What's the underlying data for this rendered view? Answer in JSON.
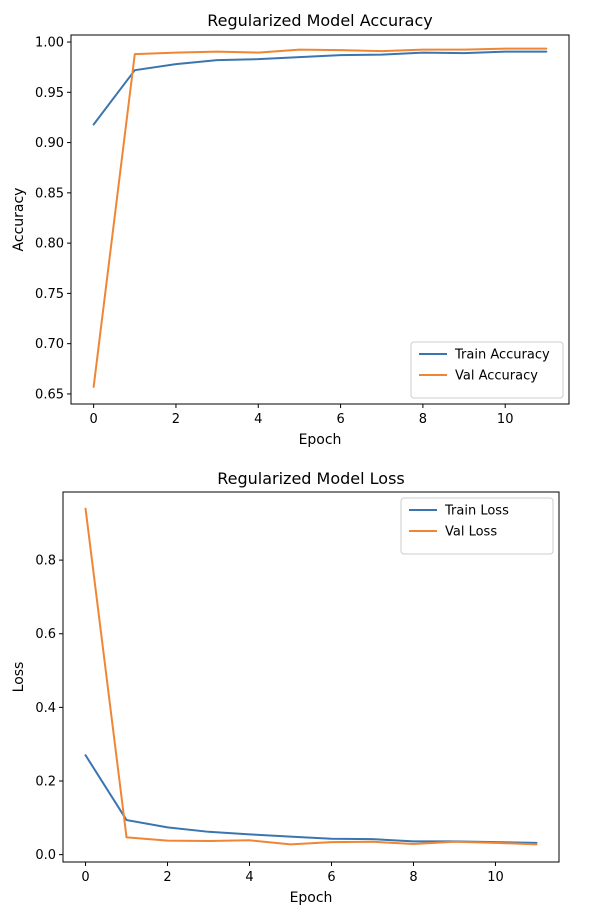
{
  "chart_data": [
    {
      "type": "line",
      "title": "Regularized Model Accuracy",
      "xlabel": "Epoch",
      "ylabel": "Accuracy",
      "xlim": [
        -0.55,
        11.55
      ],
      "ylim": [
        0.64,
        1.007
      ],
      "x_ticks": [
        0,
        2,
        4,
        6,
        8,
        10
      ],
      "y_ticks": [
        0.65,
        0.7,
        0.75,
        0.8,
        0.85,
        0.9,
        0.95,
        1.0
      ],
      "y_tick_decimals": 2,
      "x": [
        0,
        1,
        2,
        3,
        4,
        5,
        6,
        7,
        8,
        9,
        10,
        11
      ],
      "legend_position": "bottom-right",
      "grid": false,
      "series": [
        {
          "name": "Train Accuracy",
          "color": "#3b75af",
          "values": [
            0.918,
            0.972,
            0.978,
            0.982,
            0.983,
            0.985,
            0.987,
            0.9875,
            0.9895,
            0.989,
            0.9905,
            0.9905
          ]
        },
        {
          "name": "Val Accuracy",
          "color": "#ef8636",
          "values": [
            0.657,
            0.988,
            0.9895,
            0.9905,
            0.9895,
            0.9925,
            0.992,
            0.991,
            0.9925,
            0.9925,
            0.9935,
            0.9935
          ]
        }
      ]
    },
    {
      "type": "line",
      "title": "Regularized Model Loss",
      "xlabel": "Epoch",
      "ylabel": "Loss",
      "xlim": [
        -0.55,
        11.55
      ],
      "ylim": [
        -0.02,
        0.985
      ],
      "x_ticks": [
        0,
        2,
        4,
        6,
        8,
        10
      ],
      "y_ticks": [
        0.0,
        0.2,
        0.4,
        0.6,
        0.8
      ],
      "y_tick_decimals": 1,
      "x": [
        0,
        1,
        2,
        3,
        4,
        5,
        6,
        7,
        8,
        9,
        10,
        11
      ],
      "legend_position": "top-right",
      "grid": false,
      "series": [
        {
          "name": "Train Loss",
          "color": "#3b75af",
          "values": [
            0.27,
            0.094,
            0.074,
            0.062,
            0.055,
            0.049,
            0.043,
            0.042,
            0.036,
            0.036,
            0.034,
            0.032
          ]
        },
        {
          "name": "Val Loss",
          "color": "#ef8636",
          "values": [
            0.94,
            0.047,
            0.038,
            0.037,
            0.039,
            0.028,
            0.034,
            0.035,
            0.029,
            0.035,
            0.032,
            0.028
          ]
        }
      ]
    }
  ]
}
